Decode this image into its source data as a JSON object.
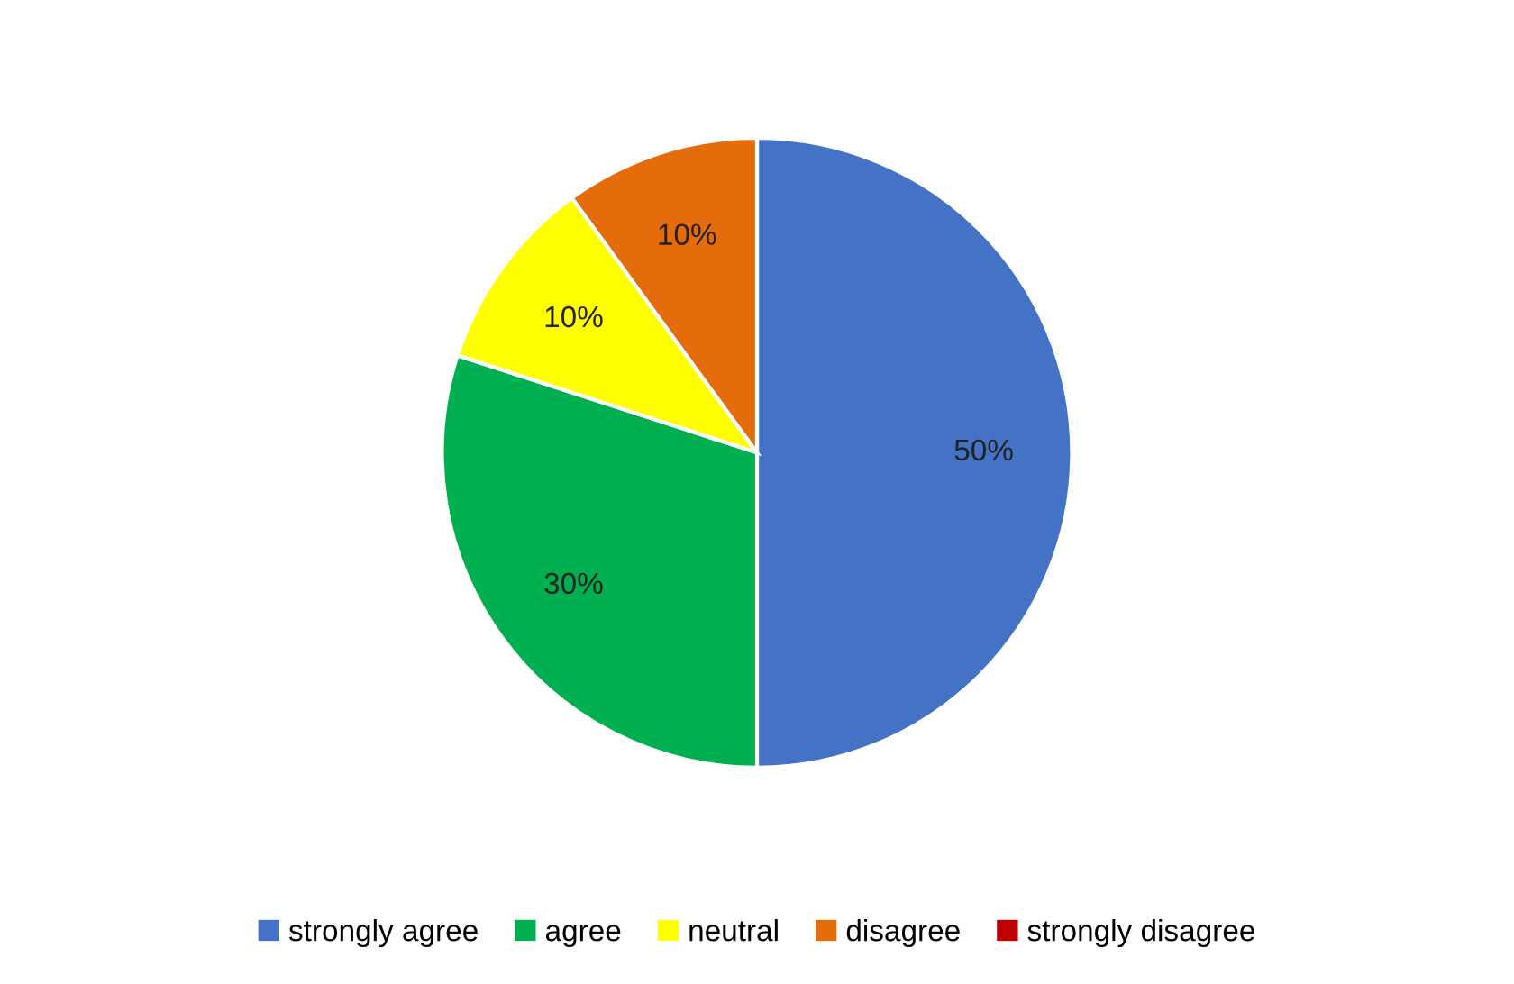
{
  "chart_data": {
    "type": "pie",
    "categories": [
      "strongly agree",
      "agree",
      "neutral",
      "disagree",
      "strongly disagree"
    ],
    "values": [
      50,
      30,
      10,
      10,
      0
    ],
    "value_labels": [
      "50%",
      "30%",
      "10%",
      "10%",
      null
    ],
    "colors": [
      "#4472c4",
      "#00b050",
      "#ffff00",
      "#e46c0a",
      "#c00000"
    ],
    "legend": "bottom"
  }
}
